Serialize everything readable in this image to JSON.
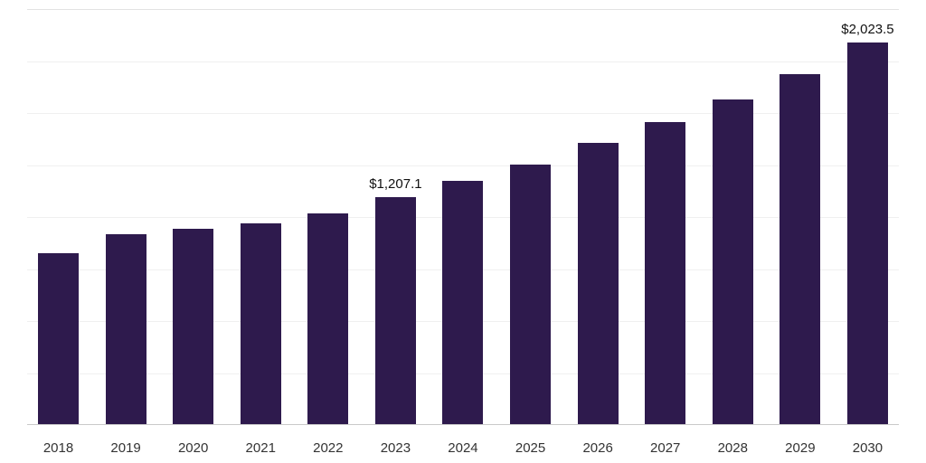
{
  "chart_data": {
    "type": "bar",
    "title": "",
    "xlabel": "",
    "ylabel": "",
    "categories": [
      "2018",
      "2019",
      "2020",
      "2021",
      "2022",
      "2023",
      "2024",
      "2025",
      "2026",
      "2027",
      "2028",
      "2029",
      "2030"
    ],
    "values": [
      910,
      1010,
      1040,
      1065,
      1120,
      1207.1,
      1290,
      1378,
      1490,
      1600,
      1722,
      1855,
      2023.5
    ],
    "data_labels": {
      "2023": "$1,207.1",
      "2030": "$2,023.5"
    },
    "ylim": [
      0,
      2200
    ],
    "bar_color": "#2e1a4d",
    "grid": "horizontal-faint",
    "legend": "none"
  }
}
